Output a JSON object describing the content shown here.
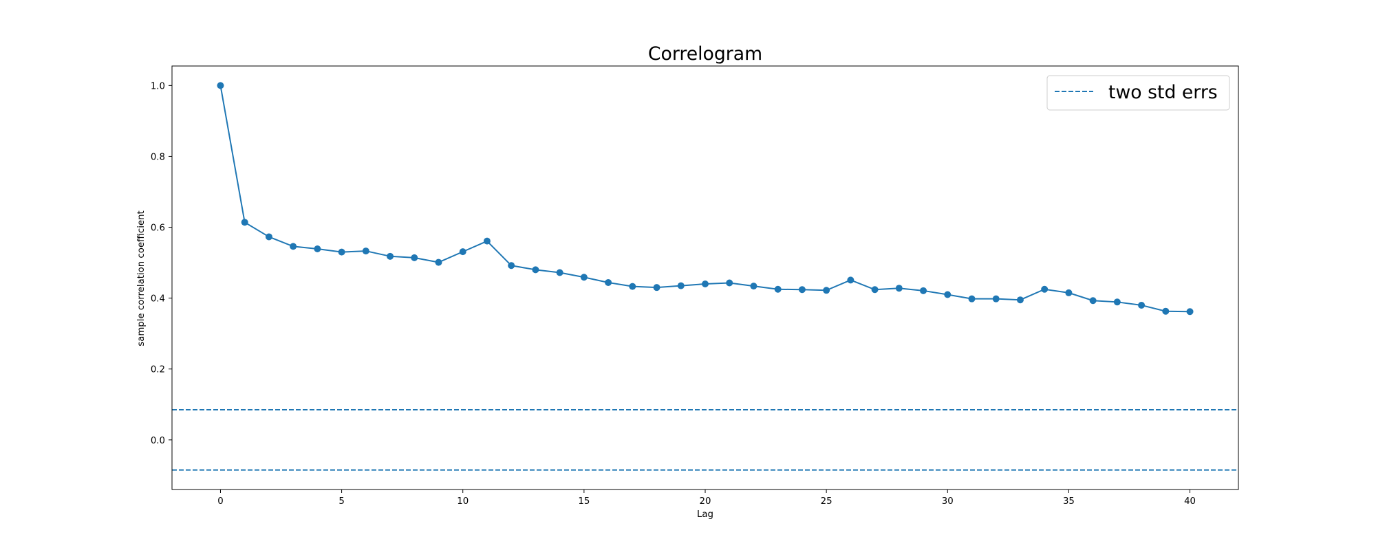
{
  "chart_data": {
    "type": "line",
    "title": "Correlogram",
    "xlabel": "Lag",
    "ylabel": "sample correlation coefficient",
    "xlim": [
      -2,
      42
    ],
    "ylim": [
      -0.14,
      1.055
    ],
    "xticks": [
      0,
      5,
      10,
      15,
      20,
      25,
      30,
      35,
      40
    ],
    "yticks": [
      0.0,
      0.2,
      0.4,
      0.6,
      0.8,
      1.0
    ],
    "ytick_labels": [
      "0.0",
      "0.2",
      "0.4",
      "0.6",
      "0.8",
      "1.0"
    ],
    "grid": false,
    "color": "#1f77b4",
    "series": [
      {
        "x": [
          0,
          1,
          2,
          3,
          4,
          5,
          6,
          7,
          8,
          9,
          10,
          11,
          12,
          13,
          14,
          15,
          16,
          17,
          18,
          19,
          20,
          21,
          22,
          23,
          24,
          25,
          26,
          27,
          28,
          29,
          30,
          31,
          32,
          33,
          34,
          35,
          36,
          37,
          38,
          39,
          40
        ],
        "values": [
          1.0,
          0.614,
          0.573,
          0.546,
          0.539,
          0.53,
          0.533,
          0.518,
          0.514,
          0.501,
          0.531,
          0.561,
          0.492,
          0.48,
          0.472,
          0.459,
          0.444,
          0.433,
          0.43,
          0.435,
          0.44,
          0.443,
          0.434,
          0.425,
          0.424,
          0.422,
          0.451,
          0.424,
          0.428,
          0.421,
          0.41,
          0.398,
          0.398,
          0.395,
          0.425,
          0.415,
          0.393,
          0.389,
          0.38,
          0.363,
          0.362
        ]
      }
    ],
    "reference_lines": [
      {
        "y": 0.085,
        "style": "dashed"
      },
      {
        "y": -0.085,
        "style": "dashed"
      }
    ],
    "legend": {
      "placement": "top-right",
      "entries": [
        {
          "label": "two std errs",
          "style": "dashed"
        }
      ]
    }
  }
}
